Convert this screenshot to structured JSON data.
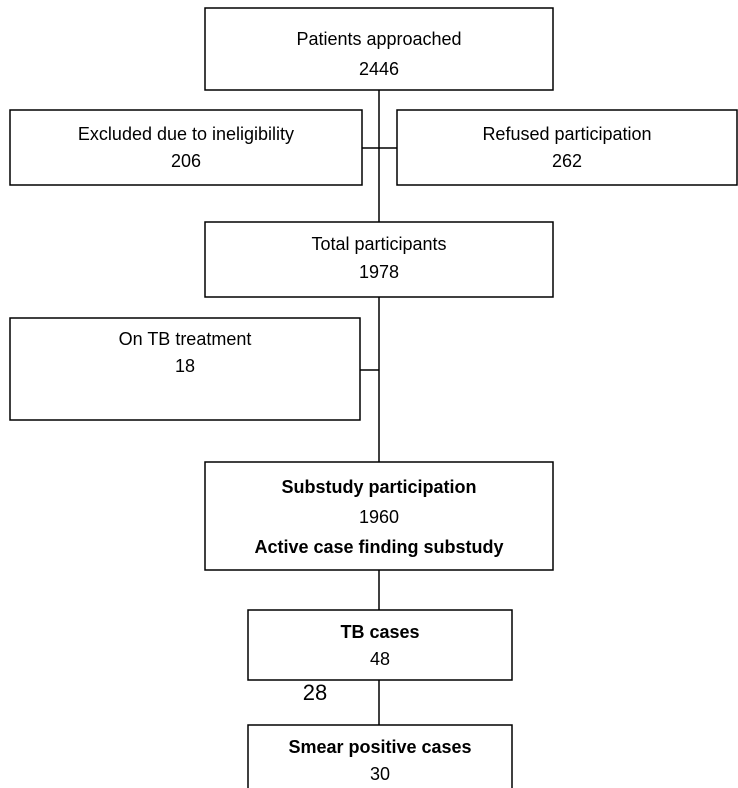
{
  "nodes": [
    {
      "label": "Patients approached",
      "count": 2446
    },
    {
      "label": "Excluded due to ineligibility",
      "count": 206
    },
    {
      "label": "Refused participation",
      "count": 262
    },
    {
      "label": "Total participants",
      "count": 1978
    },
    {
      "label": "On TB treatment",
      "count": 18
    },
    {
      "label": "Substudy participation",
      "count": 1960,
      "sublabel": "Active case finding substudy"
    },
    {
      "label": "TB cases",
      "count": 48
    },
    {
      "label": "Smear positive cases",
      "count": 30
    }
  ],
  "annotation": 28
}
